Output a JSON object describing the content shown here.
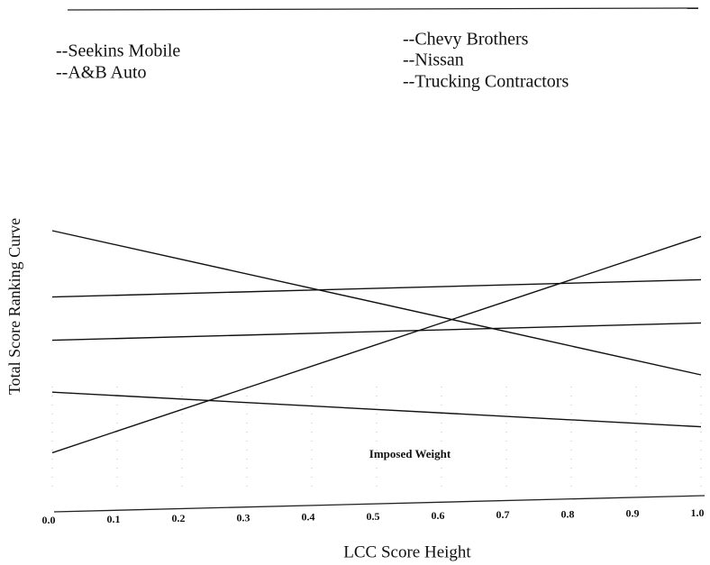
{
  "chart_data": {
    "type": "line",
    "y_label": "Total Score Ranking Curve",
    "x_label": "LCC Score Height",
    "annotation": "Imposed Weight",
    "x": [
      0,
      1
    ],
    "xlim": [
      0,
      1
    ],
    "xticks": [
      {
        "value": 0,
        "label": "0.0"
      },
      0.1,
      0.2,
      0.3,
      0.4,
      0.5,
      0.6,
      0.7,
      0.8,
      0.9,
      {
        "value": 1,
        "label": "1.0"
      }
    ],
    "ylim": [
      0,
      100
    ],
    "color": "#111111",
    "series": [
      {
        "name": "--Seekins Mobile",
        "values": [
          95,
          45
        ]
      },
      {
        "name": "--A&B Auto",
        "values": [
          72,
          78
        ]
      },
      {
        "name": "--Chevy Brothers",
        "values": [
          57,
          63
        ]
      },
      {
        "name": "--Nissan",
        "values": [
          39,
          27
        ]
      },
      {
        "name": "--Trucking Contractors",
        "values": [
          18,
          93
        ]
      }
    ]
  }
}
